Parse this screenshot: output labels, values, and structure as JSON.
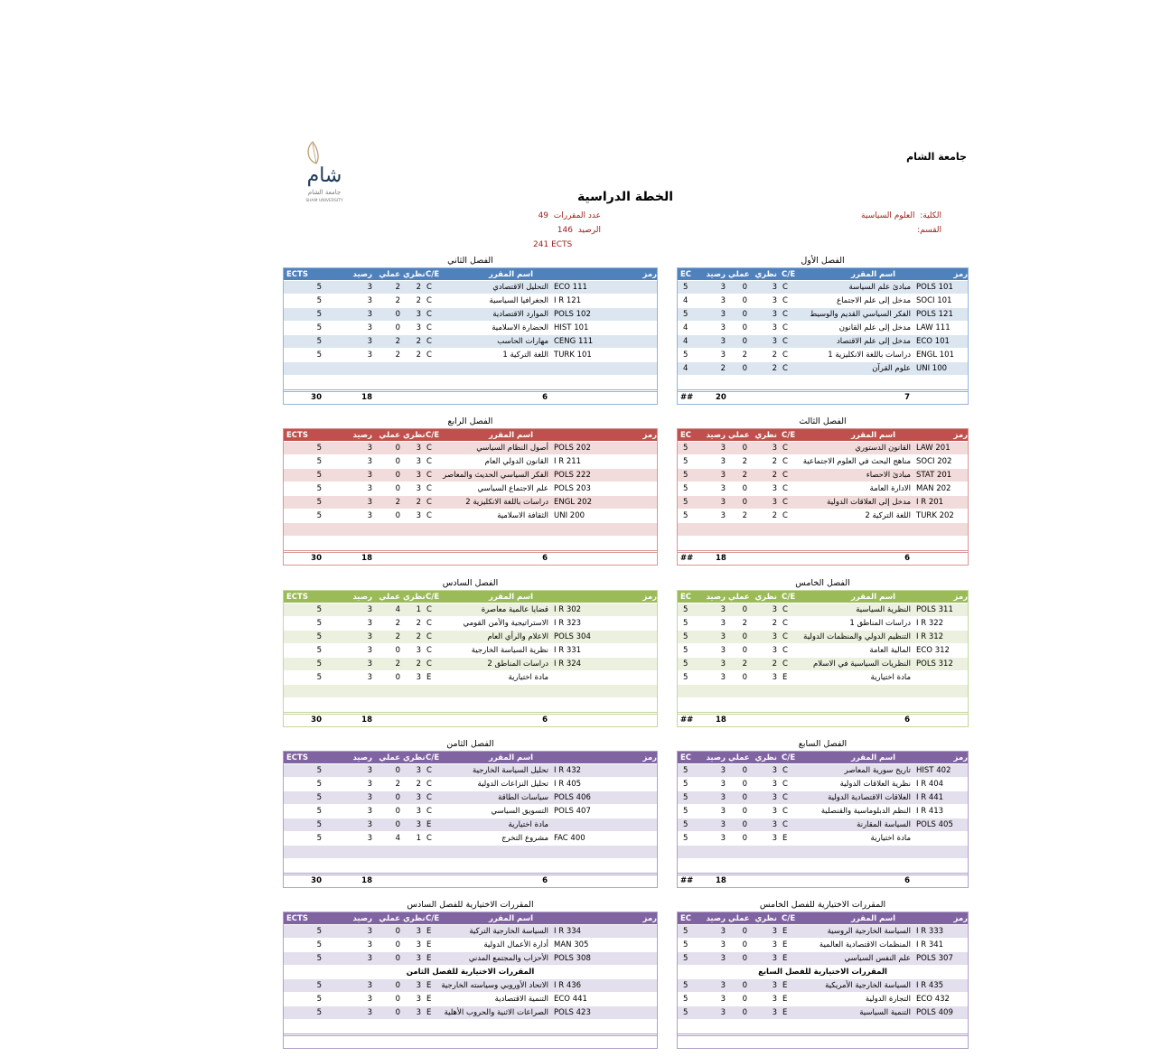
{
  "header": {
    "university": "جامعة الشام",
    "logo_text": [
      "شام",
      "جامعة الشام",
      "SHAM UNIVERSITY"
    ],
    "title": "الخطة الدراسية",
    "faculty_label": "الكلية:",
    "faculty_value": "العلوم السياسية",
    "department_label": "القسم:",
    "course_count_label": "عدد المقررات",
    "course_count": "49",
    "credits_label": "الرصيد",
    "credits": "146",
    "ects_label": "ECTS",
    "ects": "241"
  },
  "columns": {
    "code": "رمز",
    "name": "اسم المقرر",
    "ce": "C/E",
    "theory": "نظري",
    "practical": "عملي",
    "credit": "رصيد",
    "ects_short": "EC",
    "ects_long": "ECTS"
  },
  "themes": {
    "blue": {
      "header": "#4f81bd",
      "stripe": "#dce6f1",
      "border": "#95b3d7"
    },
    "red": {
      "header": "#c0504d",
      "stripe": "#f2dcdb",
      "border": "#da9694"
    },
    "green": {
      "header": "#9bbb59",
      "stripe": "#ebf1de",
      "border": "#c4d79b"
    },
    "purple": {
      "header": "#8064a2",
      "stripe": "#e4dfec",
      "border": "#b1a0c7"
    }
  },
  "semesters": [
    {
      "title": "الفصل الأول",
      "theme": "blue",
      "side": "right",
      "total": {
        "ects": "##",
        "credit": "20",
        "count": "7"
      },
      "rows": [
        [
          "POLS 101",
          "مبادئ علم السياسة",
          "C",
          "3",
          "0",
          "3",
          "5"
        ],
        [
          "SOCI 101",
          "مدخل إلى علم الاجتماع",
          "C",
          "3",
          "0",
          "3",
          "4"
        ],
        [
          "POLS 121",
          "الفكر السياسي القديم والوسيط",
          "C",
          "3",
          "0",
          "3",
          "5"
        ],
        [
          "LAW  111",
          "مدخل إلى علم القانون",
          "C",
          "3",
          "0",
          "3",
          "4"
        ],
        [
          "ECO 101",
          "مدخل إلى علم الاقتصاد",
          "C",
          "3",
          "0",
          "3",
          "4"
        ],
        [
          "ENGL 101",
          "دراسات باللغة الانكليزية 1",
          "C",
          "2",
          "2",
          "3",
          "5"
        ],
        [
          "UNI 100",
          "علوم القرآن",
          "C",
          "2",
          "0",
          "2",
          "4"
        ]
      ]
    },
    {
      "title": "الفصل الثاني",
      "theme": "blue",
      "side": "left",
      "total": {
        "ects": "30",
        "credit": "18",
        "count": "6"
      },
      "rows": [
        [
          "ECO 111",
          "التحليل الاقتصادي",
          "C",
          "2",
          "2",
          "3",
          "5"
        ],
        [
          "I R 121",
          "الجغرافيا السياسية",
          "C",
          "2",
          "2",
          "3",
          "5"
        ],
        [
          "POLS 102",
          "الموارد الاقتصادية",
          "C",
          "3",
          "0",
          "3",
          "5"
        ],
        [
          "HIST 101",
          "الحضارة الاسلامية",
          "C",
          "3",
          "0",
          "3",
          "5"
        ],
        [
          "CENG 111",
          "مهارات الحاسب",
          "C",
          "2",
          "2",
          "3",
          "5"
        ],
        [
          "TURK 101",
          "اللغة التركية 1",
          "C",
          "2",
          "2",
          "3",
          "5"
        ]
      ]
    },
    {
      "title": "الفصل الثالث",
      "theme": "red",
      "side": "right",
      "total": {
        "ects": "##",
        "credit": "18",
        "count": "6"
      },
      "rows": [
        [
          "LAW 201",
          "القانون الدستوري",
          "C",
          "3",
          "0",
          "3",
          "5"
        ],
        [
          "SOCI 202",
          "مناهج البحث في العلوم الاجتماعية",
          "C",
          "2",
          "2",
          "3",
          "5"
        ],
        [
          "STAT 201",
          "مبادئ الاحصاء",
          "C",
          "2",
          "2",
          "3",
          "5"
        ],
        [
          "MAN 202",
          "الادارة العامة",
          "C",
          "3",
          "0",
          "3",
          "5"
        ],
        [
          "I R 201",
          "مدخل إلى العلاقات الدولية",
          "C",
          "3",
          "0",
          "3",
          "5"
        ],
        [
          "TURK 202",
          "اللغة التركية 2",
          "C",
          "2",
          "2",
          "3",
          "5"
        ]
      ]
    },
    {
      "title": "الفصل الرابع",
      "theme": "red",
      "side": "left",
      "total": {
        "ects": "30",
        "credit": "18",
        "count": "6"
      },
      "rows": [
        [
          "POLS 202",
          "أصول النظام السياسي",
          "C",
          "3",
          "0",
          "3",
          "5"
        ],
        [
          "I R 211",
          "القانون الدولي العام",
          "C",
          "3",
          "0",
          "3",
          "5"
        ],
        [
          "POLS 222",
          "الفكر السياسي الحديث والمعاصر",
          "C",
          "3",
          "0",
          "3",
          "5"
        ],
        [
          "POLS 203",
          "علم الاجتماع السياسي",
          "C",
          "3",
          "0",
          "3",
          "5"
        ],
        [
          "ENGL 202",
          "دراسات باللغة الانكليزية 2",
          "C",
          "2",
          "2",
          "3",
          "5"
        ],
        [
          "UNI 200",
          "الثقافة الاسلامية",
          "C",
          "3",
          "0",
          "3",
          "5"
        ]
      ]
    },
    {
      "title": "الفصل الخامس",
      "theme": "green",
      "side": "right",
      "total": {
        "ects": "##",
        "credit": "18",
        "count": "6"
      },
      "rows": [
        [
          "POLS 311",
          "النظرية السياسية",
          "C",
          "3",
          "0",
          "3",
          "5"
        ],
        [
          "I R 322",
          "دراسات المناطق 1",
          "C",
          "2",
          "2",
          "3",
          "5"
        ],
        [
          "I R 312",
          "التنظيم الدولي والمنظمات الدولية",
          "C",
          "3",
          "0",
          "3",
          "5"
        ],
        [
          "ECO 312",
          "المالية العامة",
          "C",
          "3",
          "0",
          "3",
          "5"
        ],
        [
          "POLS 312",
          "النظريات السياسية في الاسلام",
          "C",
          "2",
          "2",
          "3",
          "5"
        ],
        [
          "",
          "مادة اختيارية",
          "E",
          "3",
          "0",
          "3",
          "5"
        ]
      ]
    },
    {
      "title": "الفصل السادس",
      "theme": "green",
      "side": "left",
      "total": {
        "ects": "30",
        "credit": "18",
        "count": "6"
      },
      "rows": [
        [
          "I R 302",
          "قضايا عالمية معاصرة",
          "C",
          "1",
          "4",
          "3",
          "5"
        ],
        [
          "I R 323",
          "الاستراتيجية والأمن القومي",
          "C",
          "2",
          "2",
          "3",
          "5"
        ],
        [
          "POLS 304",
          "الاعلام والرأي العام",
          "C",
          "2",
          "2",
          "3",
          "5"
        ],
        [
          "I R 331",
          "نظرية السياسة الخارجية",
          "C",
          "3",
          "0",
          "3",
          "5"
        ],
        [
          "I R 324",
          "دراسات المناطق 2",
          "C",
          "2",
          "2",
          "3",
          "5"
        ],
        [
          "",
          "مادة اختيارية",
          "E",
          "3",
          "0",
          "3",
          "5"
        ]
      ]
    },
    {
      "title": "الفصل السابع",
      "theme": "purple",
      "side": "right",
      "total": {
        "ects": "##",
        "credit": "18",
        "count": "6"
      },
      "rows": [
        [
          "HIST 402",
          "تاريخ سورية المعاصر",
          "C",
          "3",
          "0",
          "3",
          "5"
        ],
        [
          "I R 404",
          "نظرية العلاقات الدولية",
          "C",
          "3",
          "0",
          "3",
          "5"
        ],
        [
          "I R 441",
          "العلاقات الاقتصادية الدولية",
          "C",
          "3",
          "0",
          "3",
          "5"
        ],
        [
          "I R 413",
          "النظم الدبلوماسية والقنصلية",
          "C",
          "3",
          "0",
          "3",
          "5"
        ],
        [
          "POLS 405",
          "السياسة المقارنة",
          "C",
          "3",
          "0",
          "3",
          "5"
        ],
        [
          "",
          "مادة اختيارية",
          "E",
          "3",
          "0",
          "3",
          "5"
        ]
      ]
    },
    {
      "title": "الفصل الثامن",
      "theme": "purple",
      "side": "left",
      "total": {
        "ects": "30",
        "credit": "18",
        "count": "6"
      },
      "rows": [
        [
          "I R 432",
          "تحليل السياسة الخارجية",
          "C",
          "3",
          "0",
          "3",
          "5"
        ],
        [
          "I R 405",
          "تحليل النزاعات الدولية",
          "C",
          "2",
          "2",
          "3",
          "5"
        ],
        [
          "POLS 406",
          "سياسات الطاقة",
          "C",
          "3",
          "0",
          "3",
          "5"
        ],
        [
          "POLS 407",
          "التسويق السياسي",
          "C",
          "3",
          "0",
          "3",
          "5"
        ],
        [
          "",
          "مادة اختيارية",
          "E",
          "3",
          "0",
          "3",
          "5"
        ],
        [
          "FAC 400",
          "مشروع التخرج",
          "C",
          "1",
          "4",
          "3",
          "5"
        ]
      ]
    }
  ],
  "electives": [
    {
      "title": "المقررات الاختيارية للفصل الخامس",
      "theme": "purple",
      "side": "right",
      "rows": [
        [
          "I R 333",
          "السياسة الخارجية الروسية",
          "E",
          "3",
          "0",
          "3",
          "5"
        ],
        [
          "I R 341",
          "المنظمات الاقتصادية العالمية",
          "E",
          "3",
          "0",
          "3",
          "5"
        ],
        [
          "POLS 307",
          "علم النفس السياسي",
          "E",
          "3",
          "0",
          "3",
          "5"
        ]
      ],
      "subtitle": "المقررات الاختيارية للفصل السابع",
      "rows2": [
        [
          "I R 435",
          "السياسة الخارجية الأمريكية",
          "E",
          "3",
          "0",
          "3",
          "5"
        ],
        [
          "ECO 432",
          "التجارة الدولية",
          "E",
          "3",
          "0",
          "3",
          "5"
        ],
        [
          "POLS 409",
          "التنمية السياسية",
          "E",
          "3",
          "0",
          "3",
          "5"
        ]
      ]
    },
    {
      "title": "المقررات الاختيارية للفصل السادس",
      "theme": "purple",
      "side": "left",
      "rows": [
        [
          "I R 334",
          "السياسة الخارجية التركية",
          "E",
          "3",
          "0",
          "3",
          "5"
        ],
        [
          "MAN 305",
          "أدارة الأعمال الدولية",
          "E",
          "3",
          "0",
          "3",
          "5"
        ],
        [
          "POLS 308",
          "الأحزاب والمجتمع المدني",
          "E",
          "3",
          "0",
          "3",
          "5"
        ]
      ],
      "subtitle": "المقررات الاختيارية للفصل الثامن",
      "rows2": [
        [
          "I R 436",
          "الاتحاد الأوروبي وسياسته الخارجية",
          "E",
          "3",
          "0",
          "3",
          "5"
        ],
        [
          "ECO 441",
          "التنمية الاقتصادية",
          "E",
          "3",
          "0",
          "3",
          "5"
        ],
        [
          "POLS 423",
          "الصراعات الاثنية والحروب الأهلية",
          "E",
          "3",
          "0",
          "3",
          "5"
        ]
      ]
    }
  ]
}
